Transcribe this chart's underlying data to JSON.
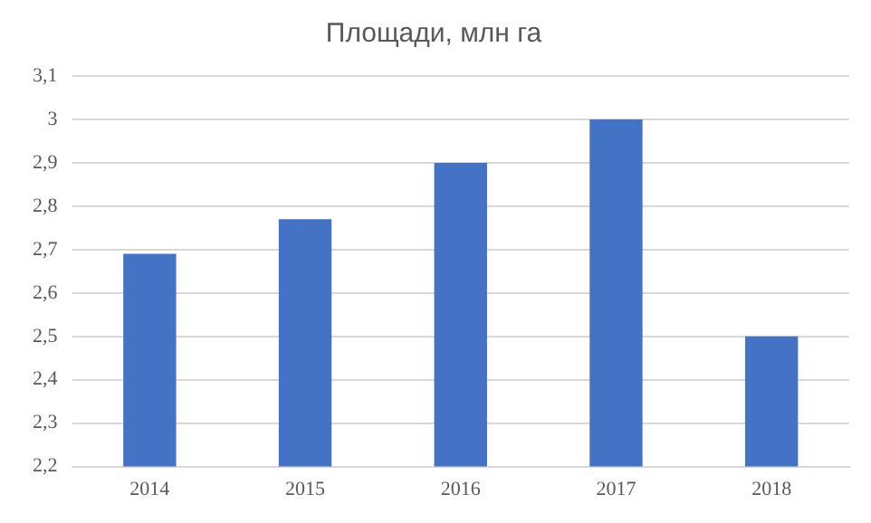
{
  "chart_data": {
    "type": "bar",
    "title": "Площади, млн га",
    "categories": [
      "2014",
      "2015",
      "2016",
      "2017",
      "2018"
    ],
    "values": [
      2.69,
      2.77,
      2.9,
      3.0,
      2.5
    ],
    "color": "#4472c4",
    "ylim": [
      2.2,
      3.1
    ],
    "yticks": [
      {
        "value": 2.2,
        "label": "2,2"
      },
      {
        "value": 2.3,
        "label": "2,3"
      },
      {
        "value": 2.4,
        "label": "2,4"
      },
      {
        "value": 2.5,
        "label": "2,5"
      },
      {
        "value": 2.6,
        "label": "2,6"
      },
      {
        "value": 2.7,
        "label": "2,7"
      },
      {
        "value": 2.8,
        "label": "2,8"
      },
      {
        "value": 2.9,
        "label": "2,9"
      },
      {
        "value": 3,
        "label": "3"
      },
      {
        "value": 3.1,
        "label": "3,1"
      }
    ],
    "grid": "y",
    "legend": false
  }
}
